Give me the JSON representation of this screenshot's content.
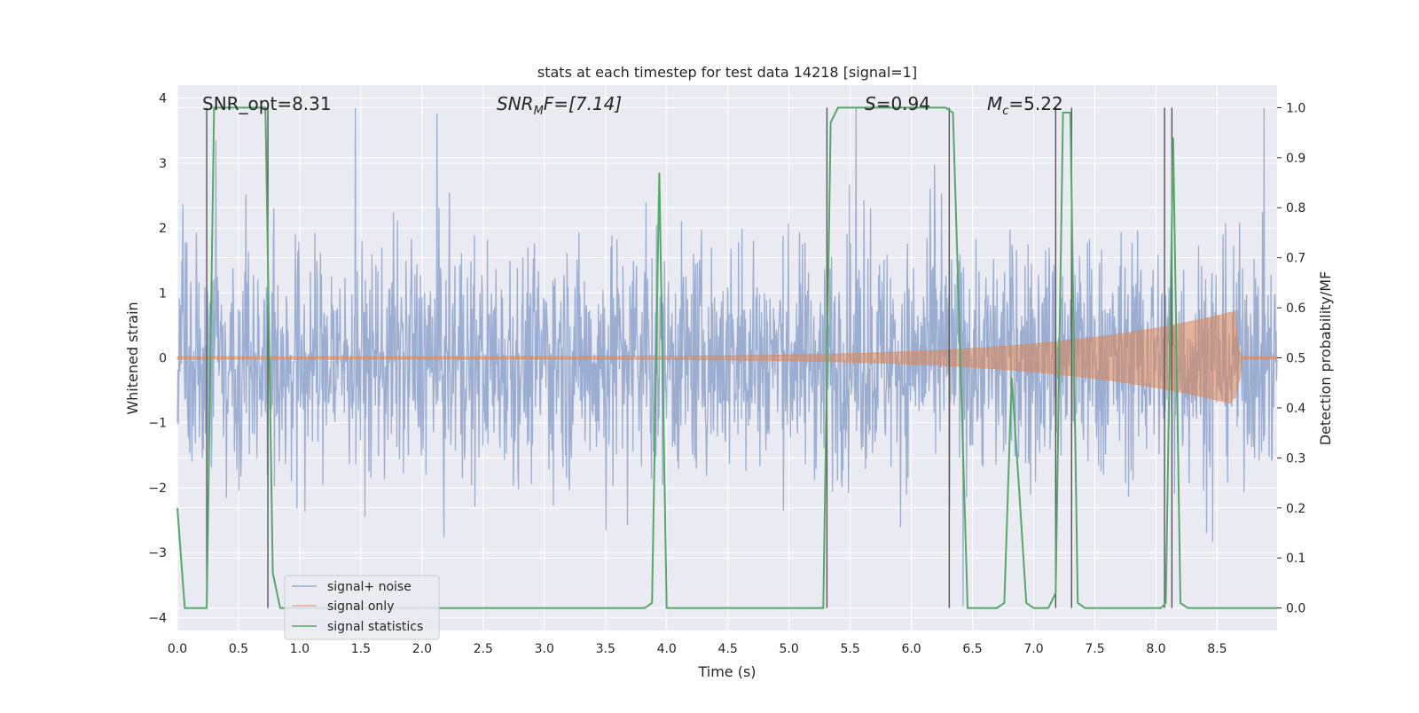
{
  "chart_data": {
    "type": "line",
    "title": "stats at each timestep for test data 14218 [signal=1]",
    "xlabel": "Time (s)",
    "ylabel": "Whitened strain",
    "ylabel_right": "Detection probability/MF",
    "xlim": [
      0.0,
      8.99
    ],
    "ylim": [
      -4.2,
      4.2
    ],
    "ylim_right": [
      -0.045,
      1.045
    ],
    "xticks": [
      0.0,
      0.5,
      1.0,
      1.5,
      2.0,
      2.5,
      3.0,
      3.5,
      4.0,
      4.5,
      5.0,
      5.5,
      6.0,
      6.5,
      7.0,
      7.5,
      8.0,
      8.5
    ],
    "xtick_labels": [
      "0.0",
      "0.5",
      "1.0",
      "1.5",
      "2.0",
      "2.5",
      "3.0",
      "3.5",
      "4.0",
      "4.5",
      "5.0",
      "5.5",
      "6.0",
      "6.5",
      "7.0",
      "7.5",
      "8.0",
      "8.5"
    ],
    "yticks": [
      -4,
      -3,
      -2,
      -1,
      0,
      1,
      2,
      3,
      4
    ],
    "ytick_labels": [
      "−4",
      "−3",
      "−2",
      "−1",
      "0",
      "1",
      "2",
      "3",
      "4"
    ],
    "yticks_right": [
      0.0,
      0.1,
      0.2,
      0.3,
      0.4,
      0.5,
      0.6,
      0.7,
      0.8,
      0.9,
      1.0
    ],
    "ytick_labels_right": [
      "0.0",
      "0.1",
      "0.2",
      "0.3",
      "0.4",
      "0.5",
      "0.6",
      "0.7",
      "0.8",
      "0.9",
      "1.0"
    ],
    "annotations": {
      "snr_opt": "SNR_opt=8.31",
      "snr_mf_main": "SNR",
      "snr_mf_sub": "M",
      "snr_mf_rest": "F=[7.14]",
      "s_main": "S",
      "s_rest": "=0.94",
      "mc_main": "M",
      "mc_sub": "c",
      "mc_rest": "=5.22"
    },
    "legend": {
      "position": "lower-left",
      "entries": [
        "signal+ noise",
        "signal only",
        "signal statistics"
      ]
    },
    "colors": {
      "noise": "#4c72b0",
      "signal": "#dd8452",
      "stats": "#55a868",
      "marker": "#555555",
      "background": "#eaeaf2",
      "grid": "#ffffff"
    },
    "noise": {
      "name": "signal+ noise",
      "duration": 8.99,
      "std": 0.85,
      "max_abs_strain": 3.85,
      "spike_rate": 0.09
    },
    "signal": {
      "name": "signal only",
      "t_merger": 8.65,
      "amp_start": 0.02,
      "amp_peak": 0.72,
      "ringdown_end": 8.7,
      "band_lower_offset": -0.3
    },
    "statistics": {
      "name": "signal statistics",
      "t": [
        0.0,
        0.06,
        0.12,
        0.18,
        0.24,
        0.3,
        0.36,
        0.42,
        0.48,
        0.54,
        0.6,
        0.66,
        0.72,
        0.78,
        0.84,
        0.9,
        0.96,
        1.02,
        2.1,
        3.82,
        3.88,
        3.94,
        4.0,
        4.06,
        5.28,
        5.34,
        5.4,
        5.46,
        5.52,
        6.28,
        6.34,
        6.4,
        6.46,
        6.52,
        6.58,
        6.64,
        6.7,
        6.76,
        6.82,
        6.88,
        6.94,
        7.0,
        7.06,
        7.12,
        7.18,
        7.24,
        7.3,
        7.36,
        7.42,
        7.48,
        8.04,
        8.08,
        8.14,
        8.2,
        8.26,
        8.99
      ],
      "p": [
        0.2,
        0.0,
        0.0,
        0.0,
        0.0,
        1.0,
        1.0,
        1.0,
        1.0,
        1.0,
        1.0,
        1.0,
        1.0,
        0.07,
        0.0,
        0.0,
        0.0,
        0.0,
        0.0,
        0.0,
        0.01,
        0.87,
        0.0,
        0.0,
        0.0,
        0.97,
        1.0,
        1.0,
        1.0,
        1.0,
        0.99,
        0.5,
        0.0,
        0.0,
        0.0,
        0.0,
        0.0,
        0.01,
        0.46,
        0.24,
        0.01,
        0.0,
        0.0,
        0.0,
        0.03,
        0.99,
        0.99,
        0.01,
        0.0,
        0.0,
        0.0,
        0.01,
        0.94,
        0.01,
        0.0,
        0.0
      ]
    },
    "markers": [
      0.24,
      0.74,
      5.31,
      6.31,
      7.18,
      7.31,
      8.07,
      8.13
    ]
  }
}
